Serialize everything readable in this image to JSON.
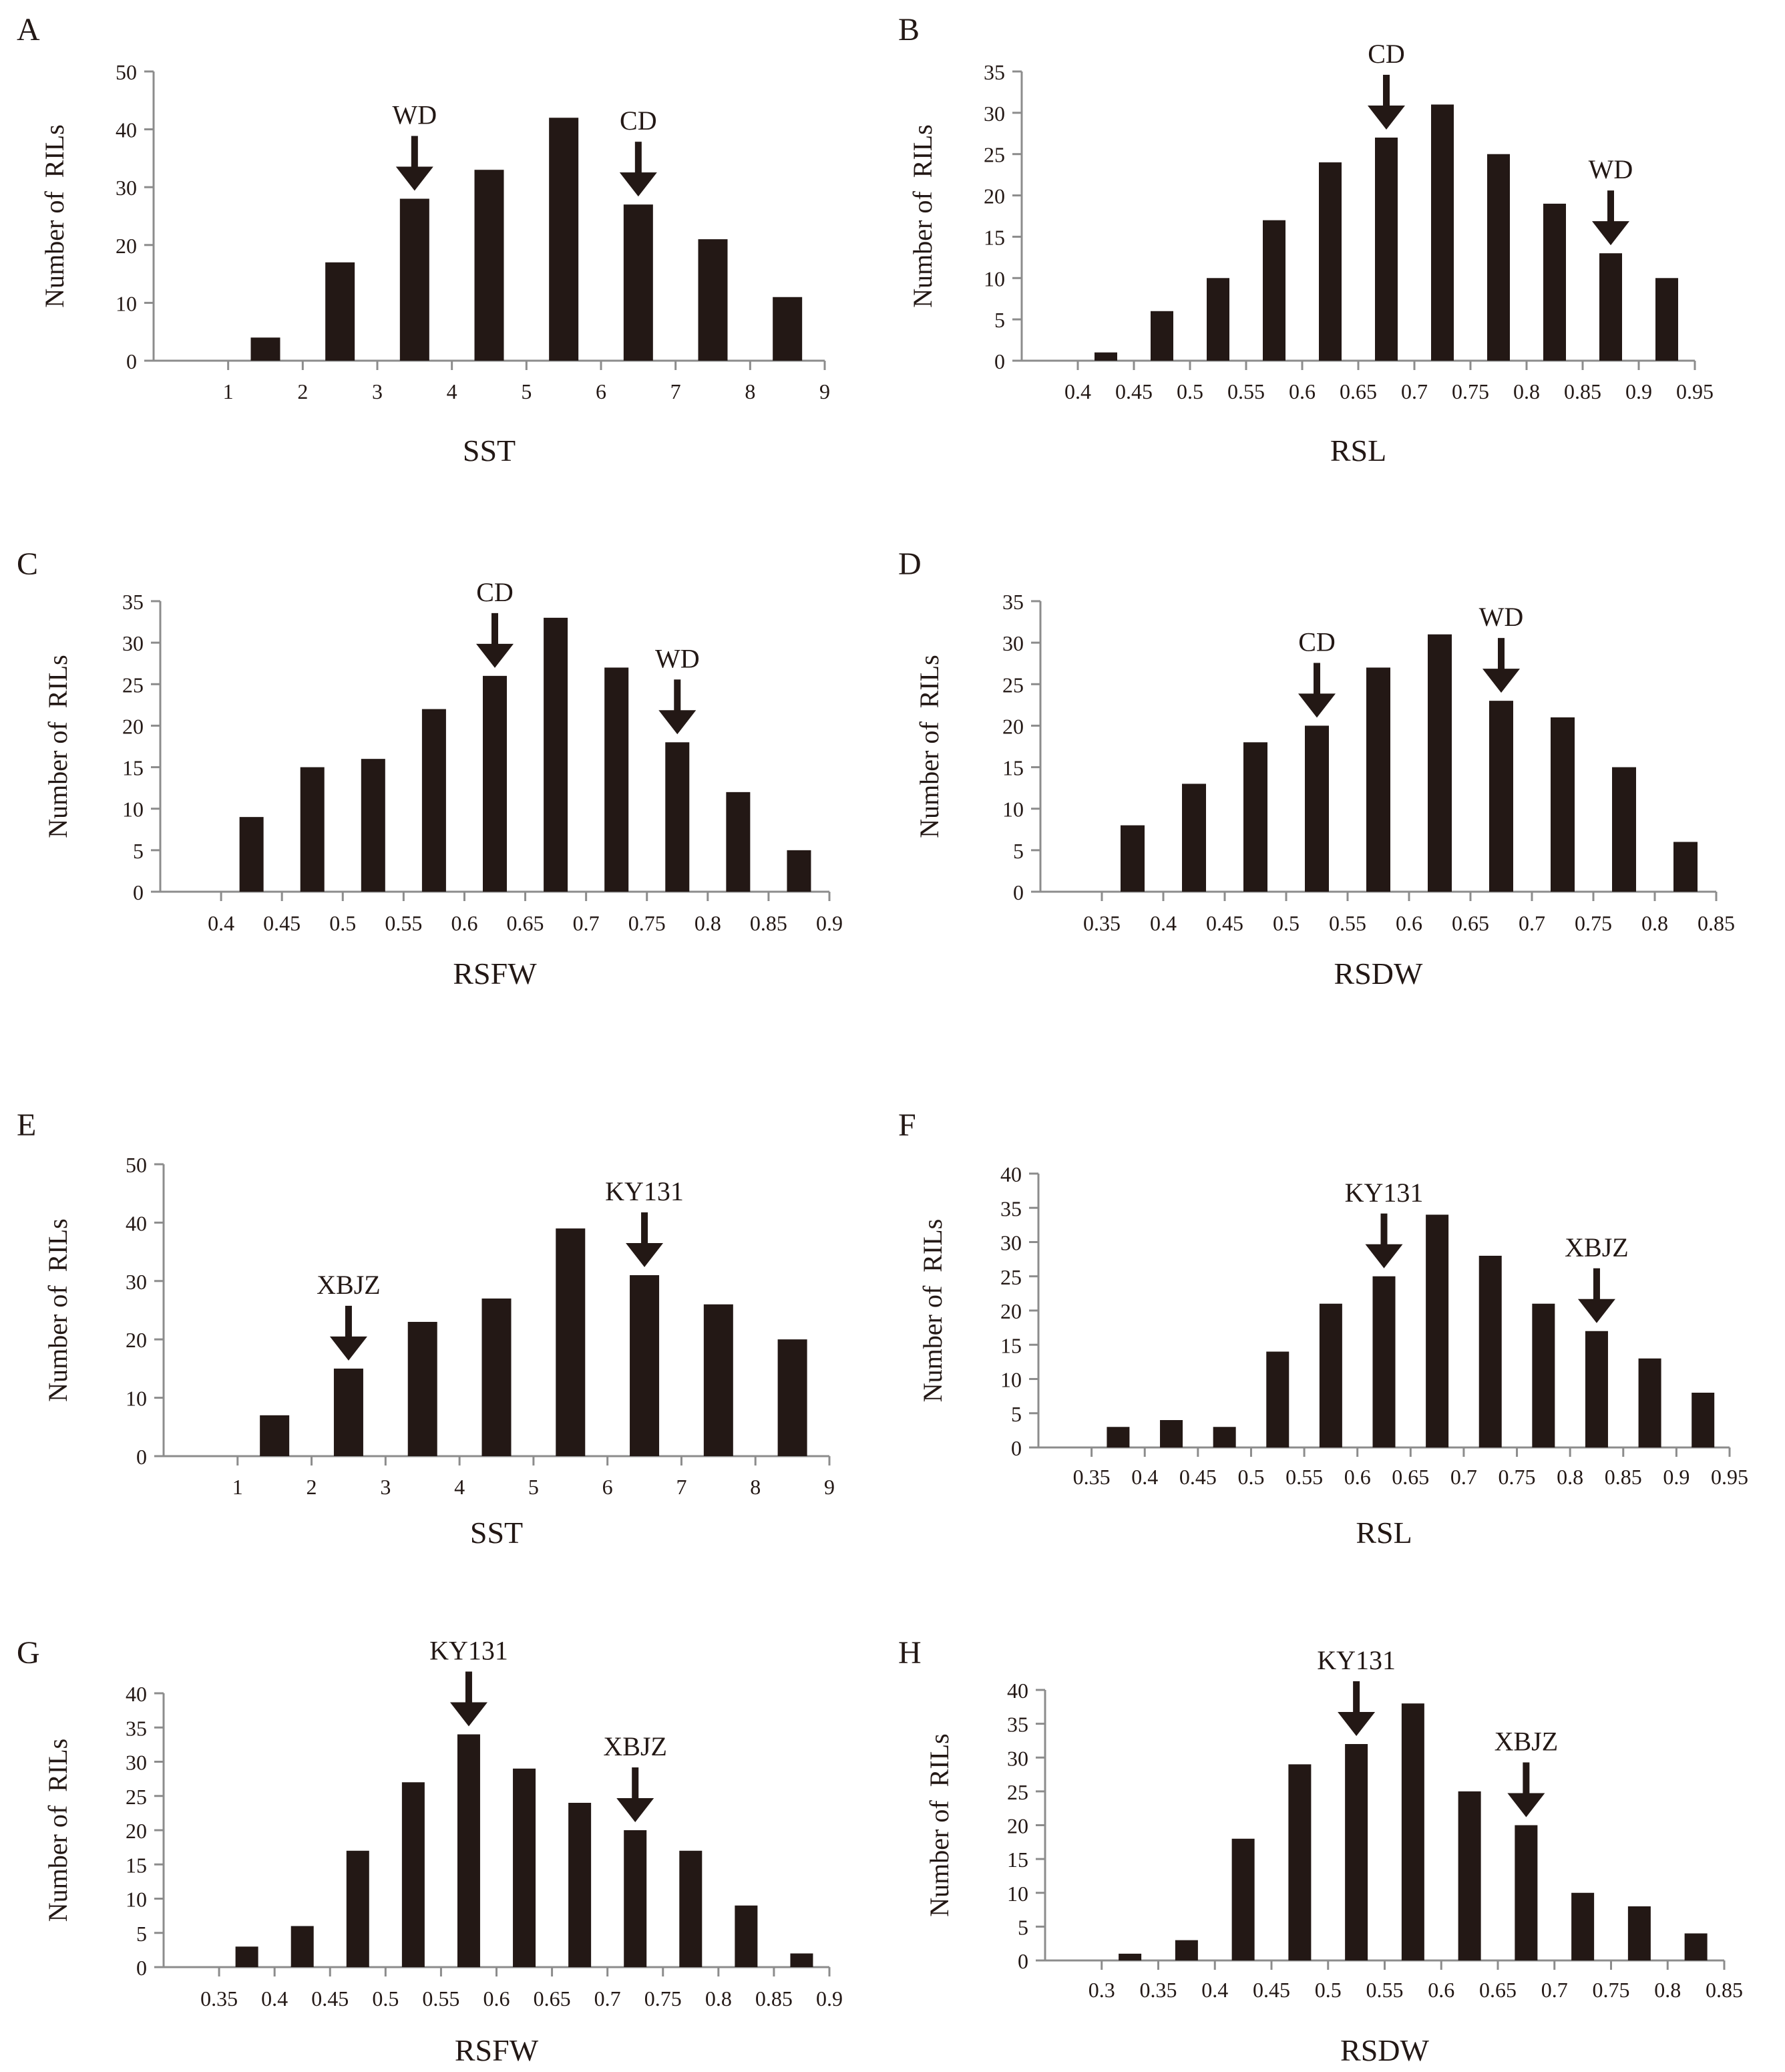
{
  "figure": {
    "bar_color": "#231815",
    "axis_color": "#8c8c8c",
    "text_color": "#231815"
  },
  "chart_data": [
    {
      "panel": "A",
      "type": "bar",
      "title": "",
      "xlabel": "SST",
      "ylabel": "Number of  RILs",
      "ylim": [
        0,
        50
      ],
      "yticks": [
        0,
        10,
        20,
        30,
        40,
        50
      ],
      "xticks": [
        "1",
        "2",
        "3",
        "4",
        "5",
        "6",
        "7",
        "8",
        "9"
      ],
      "categories": [
        "1-2",
        "2-3",
        "3-4",
        "4-5",
        "5-6",
        "6-7",
        "7-8",
        "8-9"
      ],
      "values": [
        4,
        17,
        28,
        33,
        42,
        27,
        21,
        11
      ],
      "annotations": [
        {
          "label": "WD",
          "bar_index": 2
        },
        {
          "label": "CD",
          "bar_index": 5
        }
      ]
    },
    {
      "panel": "B",
      "type": "bar",
      "title": "",
      "xlabel": "RSL",
      "ylabel": "Number of  RILs",
      "ylim": [
        0,
        35
      ],
      "yticks": [
        0,
        5,
        10,
        15,
        20,
        25,
        30,
        35
      ],
      "xticks": [
        "0.4",
        "0.45",
        "0.5",
        "0.55",
        "0.6",
        "0.65",
        "0.7",
        "0.75",
        "0.8",
        "0.85",
        "0.9",
        "0.95"
      ],
      "categories": [
        "0.4-0.45",
        "0.45-0.5",
        "0.5-0.55",
        "0.55-0.6",
        "0.6-0.65",
        "0.65-0.7",
        "0.7-0.75",
        "0.75-0.8",
        "0.8-0.85",
        "0.85-0.9",
        "0.9-0.95"
      ],
      "values": [
        1,
        6,
        10,
        17,
        24,
        27,
        31,
        25,
        19,
        13,
        10
      ],
      "annotations": [
        {
          "label": "CD",
          "bar_index": 5
        },
        {
          "label": "WD",
          "bar_index": 9
        }
      ]
    },
    {
      "panel": "C",
      "type": "bar",
      "title": "",
      "xlabel": "RSFW",
      "ylabel": "Number of  RILs",
      "ylim": [
        0,
        35
      ],
      "yticks": [
        0,
        5,
        10,
        15,
        20,
        25,
        30,
        35
      ],
      "xticks": [
        "0.4",
        "0.45",
        "0.5",
        "0.55",
        "0.6",
        "0.65",
        "0.7",
        "0.75",
        "0.8",
        "0.85",
        "0.9"
      ],
      "categories": [
        "0.4-0.45",
        "0.45-0.5",
        "0.5-0.55",
        "0.55-0.6",
        "0.6-0.65",
        "0.65-0.7",
        "0.7-0.75",
        "0.75-0.8",
        "0.8-0.85",
        "0.85-0.9"
      ],
      "values": [
        9,
        15,
        16,
        22,
        26,
        33,
        27,
        18,
        12,
        5
      ],
      "annotations": [
        {
          "label": "CD",
          "bar_index": 4
        },
        {
          "label": "WD",
          "bar_index": 7
        }
      ]
    },
    {
      "panel": "D",
      "type": "bar",
      "title": "",
      "xlabel": "RSDW",
      "ylabel": "Number of  RILs",
      "ylim": [
        0,
        35
      ],
      "yticks": [
        0,
        5,
        10,
        15,
        20,
        25,
        30,
        35
      ],
      "xticks": [
        "0.35",
        "0.4",
        "0.45",
        "0.5",
        "0.55",
        "0.6",
        "0.65",
        "0.7",
        "0.75",
        "0.8",
        "0.85"
      ],
      "categories": [
        "0.35-0.4",
        "0.4-0.45",
        "0.45-0.5",
        "0.5-0.55",
        "0.55-0.6",
        "0.6-0.65",
        "0.65-0.7",
        "0.7-0.75",
        "0.75-0.8",
        "0.8-0.85"
      ],
      "values": [
        8,
        13,
        18,
        20,
        27,
        31,
        23,
        21,
        15,
        6
      ],
      "annotations": [
        {
          "label": "CD",
          "bar_index": 3
        },
        {
          "label": "WD",
          "bar_index": 6
        }
      ]
    },
    {
      "panel": "E",
      "type": "bar",
      "title": "",
      "xlabel": "SST",
      "ylabel": "Number of  RILs",
      "ylim": [
        0,
        50
      ],
      "yticks": [
        0,
        10,
        20,
        30,
        40,
        50
      ],
      "xticks": [
        "1",
        "2",
        "3",
        "4",
        "5",
        "6",
        "7",
        "8",
        "9"
      ],
      "categories": [
        "1-2",
        "2-3",
        "3-4",
        "4-5",
        "5-6",
        "6-7",
        "7-8",
        "8-9"
      ],
      "values": [
        7,
        15,
        23,
        27,
        39,
        31,
        26,
        20
      ],
      "annotations": [
        {
          "label": "XBJZ",
          "bar_index": 1
        },
        {
          "label": "KY131",
          "bar_index": 5
        }
      ]
    },
    {
      "panel": "F",
      "type": "bar",
      "title": "",
      "xlabel": "RSL",
      "ylabel": "Number of  RILs",
      "ylim": [
        0,
        40
      ],
      "yticks": [
        0,
        5,
        10,
        15,
        20,
        25,
        30,
        35,
        40
      ],
      "xticks": [
        "0.35",
        "0.4",
        "0.45",
        "0.5",
        "0.55",
        "0.6",
        "0.65",
        "0.7",
        "0.75",
        "0.8",
        "0.85",
        "0.9",
        "0.95"
      ],
      "categories": [
        "0.35-0.4",
        "0.4-0.45",
        "0.45-0.5",
        "0.5-0.55",
        "0.55-0.6",
        "0.6-0.65",
        "0.65-0.7",
        "0.7-0.75",
        "0.75-0.8",
        "0.8-0.85",
        "0.85-0.9",
        "0.9-0.95"
      ],
      "values": [
        3,
        4,
        3,
        14,
        21,
        25,
        34,
        28,
        21,
        17,
        13,
        8
      ],
      "annotations": [
        {
          "label": "KY131",
          "bar_index": 5
        },
        {
          "label": "XBJZ",
          "bar_index": 9
        }
      ]
    },
    {
      "panel": "G",
      "type": "bar",
      "title": "",
      "xlabel": "RSFW",
      "ylabel": "Number of  RILs",
      "ylim": [
        0,
        40
      ],
      "yticks": [
        0,
        5,
        10,
        15,
        20,
        25,
        30,
        35,
        40
      ],
      "xticks": [
        "0.35",
        "0.4",
        "0.45",
        "0.5",
        "0.55",
        "0.6",
        "0.65",
        "0.7",
        "0.75",
        "0.8",
        "0.85",
        "0.9"
      ],
      "categories": [
        "0.35-0.4",
        "0.4-0.45",
        "0.45-0.5",
        "0.5-0.55",
        "0.55-0.6",
        "0.6-0.65",
        "0.65-0.7",
        "0.7-0.75",
        "0.75-0.8",
        "0.8-0.85",
        "0.85-0.9"
      ],
      "values": [
        3,
        6,
        17,
        27,
        34,
        29,
        24,
        20,
        17,
        9,
        2
      ],
      "annotations": [
        {
          "label": "KY131",
          "bar_index": 4
        },
        {
          "label": "XBJZ",
          "bar_index": 7
        }
      ]
    },
    {
      "panel": "H",
      "type": "bar",
      "title": "",
      "xlabel": "RSDW",
      "ylabel": "Number of  RILs",
      "ylim": [
        0,
        40
      ],
      "yticks": [
        0,
        5,
        10,
        15,
        20,
        25,
        30,
        35,
        40
      ],
      "xticks": [
        "0.3",
        "0.35",
        "0.4",
        "0.45",
        "0.5",
        "0.55",
        "0.6",
        "0.65",
        "0.7",
        "0.75",
        "0.8",
        "0.85"
      ],
      "categories": [
        "0.3-0.35",
        "0.35-0.4",
        "0.4-0.45",
        "0.45-0.5",
        "0.5-0.55",
        "0.55-0.6",
        "0.6-0.65",
        "0.65-0.7",
        "0.7-0.75",
        "0.75-0.8",
        "0.8-0.85"
      ],
      "values": [
        1,
        3,
        18,
        29,
        32,
        38,
        25,
        20,
        10,
        8,
        4
      ],
      "annotations": [
        {
          "label": "KY131",
          "bar_index": 4
        },
        {
          "label": "XBJZ",
          "bar_index": 7
        }
      ]
    }
  ]
}
